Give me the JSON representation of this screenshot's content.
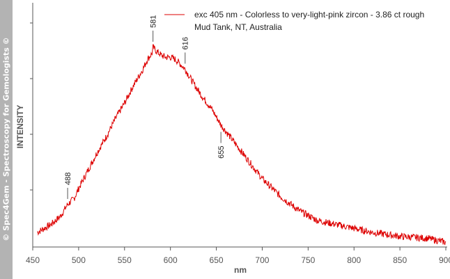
{
  "watermark": "© Spec4Gem - Spectroscopy for Gemologists ©",
  "chart_data": {
    "type": "line",
    "title": "",
    "xlabel": "nm",
    "ylabel": "INTENSITY",
    "xlim": [
      450,
      900
    ],
    "ylim": [
      0,
      1
    ],
    "x_ticks": [
      450,
      500,
      550,
      600,
      650,
      700,
      750,
      800,
      850,
      900
    ],
    "y_ticks_shown": false,
    "legend": {
      "line1": "exc 405 nm - Colorless to very-light-pink zircon - 3.86 ct rough",
      "line2": "Mud Tank, NT, Australia",
      "color": "#dd0000",
      "position": "top-right"
    },
    "series": [
      {
        "name": "exc 405 nm - Colorless to very-light-pink zircon - 3.86 ct rough",
        "color": "#dd0000",
        "noisy": true,
        "x": [
          455,
          470,
          480,
          488,
          495,
          500,
          510,
          520,
          530,
          540,
          550,
          560,
          570,
          575,
          580,
          581,
          585,
          590,
          595,
          600,
          605,
          610,
          616,
          625,
          635,
          645,
          655,
          665,
          675,
          685,
          700,
          720,
          740,
          760,
          780,
          800,
          820,
          850,
          880,
          900
        ],
        "values": [
          0.07,
          0.11,
          0.15,
          0.21,
          0.24,
          0.29,
          0.38,
          0.47,
          0.55,
          0.64,
          0.72,
          0.81,
          0.89,
          0.94,
          0.97,
          1.0,
          0.98,
          0.96,
          0.95,
          0.95,
          0.94,
          0.92,
          0.89,
          0.82,
          0.75,
          0.69,
          0.61,
          0.55,
          0.49,
          0.43,
          0.34,
          0.25,
          0.18,
          0.13,
          0.11,
          0.09,
          0.07,
          0.05,
          0.04,
          0.02
        ]
      }
    ],
    "annotations": [
      {
        "label": "488",
        "x": 488,
        "y": 0.21,
        "side": "above"
      },
      {
        "label": "581",
        "x": 581,
        "y": 1.0,
        "side": "above"
      },
      {
        "label": "616",
        "x": 616,
        "y": 0.89,
        "side": "above"
      },
      {
        "label": "655",
        "x": 655,
        "y": 0.61,
        "side": "below"
      }
    ]
  }
}
